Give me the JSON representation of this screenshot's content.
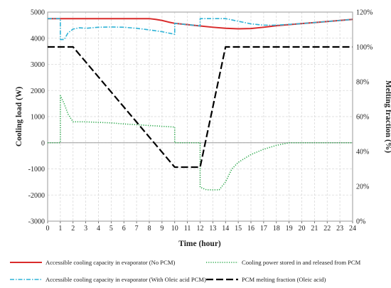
{
  "chart_data": {
    "type": "line",
    "title": "",
    "xlabel": "Time (hour)",
    "ylabel": "Cooling load (W)",
    "y2label": "Melting fraction (%)",
    "xlim": [
      0,
      24
    ],
    "ylim": [
      -3000,
      5000
    ],
    "y2lim": [
      0,
      120
    ],
    "x_ticks": [
      "0",
      "1",
      "2",
      "3",
      "4",
      "5",
      "6",
      "7",
      "8",
      "9",
      "10",
      "11",
      "12",
      "13",
      "14",
      "15",
      "16",
      "17",
      "18",
      "19",
      "20",
      "21",
      "22",
      "23",
      "24"
    ],
    "y_ticks": [
      "-3000",
      "-2000",
      "-1000",
      "0",
      "1000",
      "2000",
      "3000",
      "4000",
      "5000"
    ],
    "y2_ticks": [
      "0%",
      "20%",
      "40%",
      "60%",
      "80%",
      "100%",
      "120%"
    ],
    "grid": true,
    "legend_position": "bottom",
    "series": [
      {
        "name": "Accessible cooling capacity in evaporator (No PCM)",
        "axis": "left",
        "color": "#d92b2b",
        "style": "solid",
        "points": [
          [
            0,
            4750
          ],
          [
            1,
            4750
          ],
          [
            2,
            4750
          ],
          [
            3,
            4750
          ],
          [
            4,
            4750
          ],
          [
            5,
            4750
          ],
          [
            6,
            4750
          ],
          [
            7,
            4750
          ],
          [
            8,
            4750
          ],
          [
            8.5,
            4720
          ],
          [
            9,
            4680
          ],
          [
            9.5,
            4620
          ],
          [
            10,
            4570
          ],
          [
            11,
            4520
          ],
          [
            12,
            4470
          ],
          [
            13,
            4420
          ],
          [
            14,
            4380
          ],
          [
            15,
            4360
          ],
          [
            16,
            4370
          ],
          [
            17,
            4420
          ],
          [
            18,
            4480
          ],
          [
            19,
            4520
          ],
          [
            20,
            4560
          ],
          [
            21,
            4600
          ],
          [
            22,
            4640
          ],
          [
            23,
            4680
          ],
          [
            24,
            4720
          ]
        ]
      },
      {
        "name": "Cooling power stored in and released from PCM",
        "axis": "left",
        "color": "#2aa84a",
        "style": "dotted",
        "points": [
          [
            0,
            0
          ],
          [
            1,
            0
          ],
          [
            1,
            1800
          ],
          [
            1.3,
            1500
          ],
          [
            1.6,
            1100
          ],
          [
            2,
            800
          ],
          [
            2.5,
            800
          ],
          [
            3,
            800
          ],
          [
            4,
            780
          ],
          [
            5,
            760
          ],
          [
            6,
            720
          ],
          [
            7,
            690
          ],
          [
            8,
            660
          ],
          [
            9,
            630
          ],
          [
            10,
            600
          ],
          [
            10,
            0
          ],
          [
            11,
            0
          ],
          [
            12,
            0
          ],
          [
            12,
            -1700
          ],
          [
            12.5,
            -1800
          ],
          [
            13,
            -1800
          ],
          [
            13.5,
            -1800
          ],
          [
            14,
            -1500
          ],
          [
            14.5,
            -1000
          ],
          [
            15,
            -750
          ],
          [
            15.5,
            -600
          ],
          [
            16,
            -450
          ],
          [
            17,
            -250
          ],
          [
            18,
            -100
          ],
          [
            19,
            0
          ],
          [
            20,
            0
          ],
          [
            21,
            0
          ],
          [
            22,
            0
          ],
          [
            23,
            0
          ],
          [
            24,
            0
          ]
        ]
      },
      {
        "name": "Accessible cooling capacity in evaporator (With Oleic acid PCM)",
        "axis": "left",
        "color": "#2fb3d6",
        "style": "dash-dot",
        "points": [
          [
            0,
            4750
          ],
          [
            1,
            4750
          ],
          [
            1,
            3950
          ],
          [
            1.3,
            3950
          ],
          [
            1.6,
            4200
          ],
          [
            2,
            4350
          ],
          [
            2.5,
            4400
          ],
          [
            3,
            4380
          ],
          [
            4,
            4420
          ],
          [
            5,
            4430
          ],
          [
            6,
            4420
          ],
          [
            7,
            4380
          ],
          [
            8,
            4320
          ],
          [
            9,
            4250
          ],
          [
            10,
            4150
          ],
          [
            10,
            4570
          ],
          [
            11,
            4520
          ],
          [
            12,
            4470
          ],
          [
            12,
            4750
          ],
          [
            13,
            4750
          ],
          [
            14,
            4750
          ],
          [
            15,
            4650
          ],
          [
            16,
            4550
          ],
          [
            17,
            4500
          ],
          [
            18,
            4500
          ],
          [
            19,
            4530
          ],
          [
            20,
            4560
          ],
          [
            21,
            4600
          ],
          [
            22,
            4640
          ],
          [
            23,
            4680
          ],
          [
            24,
            4720
          ]
        ]
      },
      {
        "name": "PCM melting fraction (Oleic acid)",
        "axis": "right",
        "color": "#000000",
        "style": "long-dash",
        "points": [
          [
            0,
            100
          ],
          [
            1,
            100
          ],
          [
            2,
            100
          ],
          [
            10,
            31
          ],
          [
            12,
            31
          ],
          [
            14,
            100
          ],
          [
            24,
            100
          ]
        ]
      }
    ]
  }
}
